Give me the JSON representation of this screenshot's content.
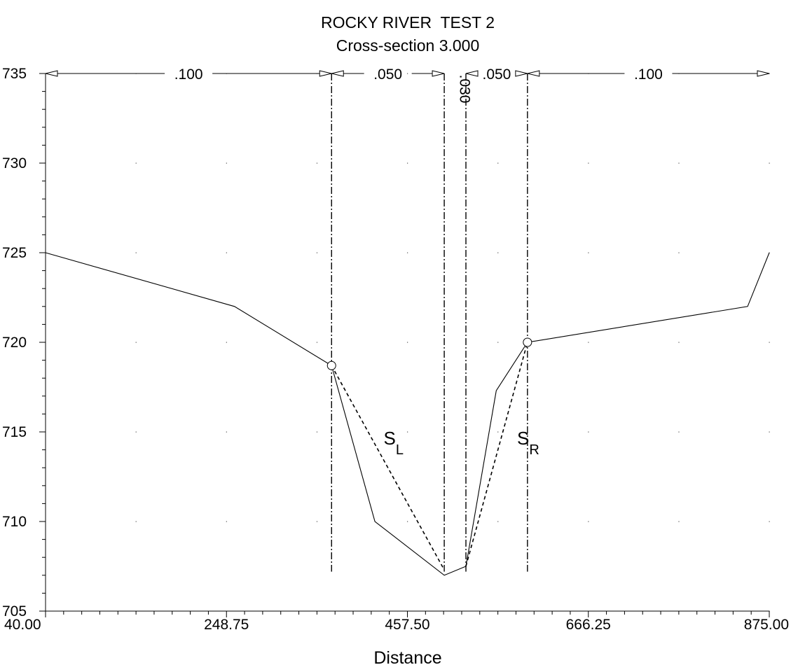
{
  "chart_data": {
    "type": "line",
    "title": "ROCKY RIVER  TEST 2",
    "subtitle": "Cross-section 3.000",
    "xlabel": "Distance",
    "ylabel": "",
    "xlim": [
      40,
      875
    ],
    "ylim": [
      705,
      735
    ],
    "x_ticks": [
      "40.00",
      "248.75",
      "457.50",
      "666.25",
      "875.00"
    ],
    "y_ticks": [
      "705",
      "710",
      "715",
      "720",
      "725",
      "730",
      "735"
    ],
    "grid": "dotted points",
    "series": [
      {
        "style": "solid",
        "points": [
          [
            40,
            725
          ],
          [
            258,
            722
          ],
          [
            370,
            718.7
          ],
          [
            420,
            710
          ],
          [
            500,
            707
          ],
          [
            525,
            707.5
          ],
          [
            560,
            717.3
          ],
          [
            596,
            720
          ],
          [
            850,
            722
          ],
          [
            875,
            725
          ]
        ]
      },
      {
        "style": "dashed",
        "points": [
          [
            370,
            718.7
          ],
          [
            500,
            707.3
          ]
        ]
      },
      {
        "style": "dashed",
        "points": [
          [
            525,
            707.5
          ],
          [
            596,
            720
          ]
        ]
      }
    ],
    "roughness_boundaries": [
      370,
      500,
      525,
      596
    ],
    "roughness_zones": [
      {
        "label": ".100",
        "from": 40,
        "to": 370
      },
      {
        "label": ".050",
        "from": 370,
        "to": 500
      },
      {
        "label": ".030",
        "from": 500,
        "to": 525,
        "rotated": true
      },
      {
        "label": ".050",
        "from": 525,
        "to": 596
      },
      {
        "label": ".100",
        "from": 596,
        "to": 875
      }
    ],
    "bank_points": [
      [
        370,
        718.7
      ],
      [
        596,
        720
      ]
    ],
    "annotations": [
      {
        "main": "S",
        "sub": "L",
        "x": 430,
        "y": 714.3
      },
      {
        "main": "S",
        "sub": "R",
        "x": 584,
        "y": 714.3
      }
    ]
  }
}
